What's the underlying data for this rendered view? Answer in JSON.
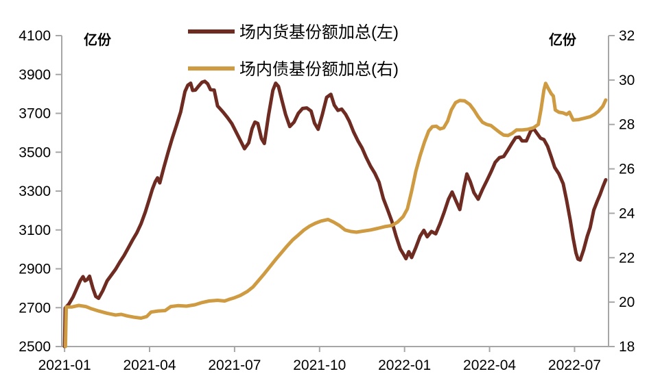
{
  "chart_data": {
    "type": "line",
    "title": "",
    "grid": false,
    "legend_position": "top-center",
    "left_axis": {
      "unit": "亿份",
      "min": 2500,
      "max": 4100,
      "ticks": [
        4100,
        3900,
        3700,
        3500,
        3300,
        3100,
        2900,
        2700,
        2500
      ]
    },
    "right_axis": {
      "unit": "亿份",
      "min": 18,
      "max": 32,
      "ticks": [
        32,
        30,
        28,
        26,
        24,
        22,
        20,
        18
      ]
    },
    "x_axis": {
      "tick_labels": [
        "2021-01",
        "2021-04",
        "2021-07",
        "2021-10",
        "2022-01",
        "2022-04",
        "2022-07"
      ],
      "tick_months": [
        0,
        3,
        6,
        9,
        12,
        15,
        18
      ]
    },
    "colors": {
      "axis": "#a6a6a6",
      "text": "#000000",
      "background": "#ffffff"
    },
    "series": [
      {
        "name": "场内货基份额加总(左)",
        "axis": "left",
        "color": "#6E2B22",
        "stroke_width": 5,
        "points": [
          [
            0.0,
            2500
          ],
          [
            0.02,
            2698
          ],
          [
            0.15,
            2718
          ],
          [
            0.3,
            2755
          ],
          [
            0.45,
            2805
          ],
          [
            0.55,
            2838
          ],
          [
            0.65,
            2860
          ],
          [
            0.72,
            2838
          ],
          [
            0.8,
            2845
          ],
          [
            0.88,
            2862
          ],
          [
            1.0,
            2800
          ],
          [
            1.1,
            2758
          ],
          [
            1.2,
            2748
          ],
          [
            1.35,
            2788
          ],
          [
            1.5,
            2838
          ],
          [
            1.65,
            2868
          ],
          [
            1.8,
            2898
          ],
          [
            1.95,
            2935
          ],
          [
            2.1,
            2968
          ],
          [
            2.25,
            3008
          ],
          [
            2.4,
            3048
          ],
          [
            2.55,
            3085
          ],
          [
            2.7,
            3132
          ],
          [
            2.85,
            3192
          ],
          [
            3.0,
            3262
          ],
          [
            3.1,
            3310
          ],
          [
            3.2,
            3348
          ],
          [
            3.28,
            3368
          ],
          [
            3.36,
            3342
          ],
          [
            3.5,
            3420
          ],
          [
            3.65,
            3498
          ],
          [
            3.8,
            3572
          ],
          [
            3.95,
            3638
          ],
          [
            4.1,
            3708
          ],
          [
            4.25,
            3812
          ],
          [
            4.35,
            3845
          ],
          [
            4.45,
            3855
          ],
          [
            4.52,
            3818
          ],
          [
            4.62,
            3820
          ],
          [
            4.72,
            3838
          ],
          [
            4.85,
            3860
          ],
          [
            4.95,
            3865
          ],
          [
            5.05,
            3852
          ],
          [
            5.15,
            3822
          ],
          [
            5.28,
            3820
          ],
          [
            5.4,
            3738
          ],
          [
            5.5,
            3722
          ],
          [
            5.62,
            3702
          ],
          [
            5.75,
            3678
          ],
          [
            5.9,
            3648
          ],
          [
            6.05,
            3605
          ],
          [
            6.2,
            3562
          ],
          [
            6.35,
            3518
          ],
          [
            6.5,
            3548
          ],
          [
            6.62,
            3622
          ],
          [
            6.72,
            3655
          ],
          [
            6.82,
            3648
          ],
          [
            6.95,
            3570
          ],
          [
            7.05,
            3545
          ],
          [
            7.2,
            3692
          ],
          [
            7.35,
            3818
          ],
          [
            7.45,
            3855
          ],
          [
            7.55,
            3838
          ],
          [
            7.68,
            3762
          ],
          [
            7.8,
            3695
          ],
          [
            7.95,
            3632
          ],
          [
            8.1,
            3655
          ],
          [
            8.25,
            3700
          ],
          [
            8.4,
            3725
          ],
          [
            8.55,
            3728
          ],
          [
            8.7,
            3712
          ],
          [
            8.82,
            3650
          ],
          [
            8.95,
            3618
          ],
          [
            9.1,
            3695
          ],
          [
            9.25,
            3782
          ],
          [
            9.4,
            3798
          ],
          [
            9.52,
            3742
          ],
          [
            9.65,
            3715
          ],
          [
            9.78,
            3722
          ],
          [
            9.92,
            3695
          ],
          [
            10.05,
            3660
          ],
          [
            10.2,
            3605
          ],
          [
            10.35,
            3560
          ],
          [
            10.5,
            3522
          ],
          [
            10.65,
            3472
          ],
          [
            10.8,
            3428
          ],
          [
            10.95,
            3392
          ],
          [
            11.1,
            3345
          ],
          [
            11.25,
            3262
          ],
          [
            11.4,
            3205
          ],
          [
            11.55,
            3145
          ],
          [
            11.7,
            3068
          ],
          [
            11.85,
            3002
          ],
          [
            11.95,
            2978
          ],
          [
            12.05,
            2952
          ],
          [
            12.15,
            2988
          ],
          [
            12.25,
            2958
          ],
          [
            12.4,
            3010
          ],
          [
            12.55,
            3068
          ],
          [
            12.68,
            3098
          ],
          [
            12.8,
            3065
          ],
          [
            12.95,
            3092
          ],
          [
            13.1,
            3080
          ],
          [
            13.25,
            3132
          ],
          [
            13.4,
            3192
          ],
          [
            13.55,
            3258
          ],
          [
            13.68,
            3295
          ],
          [
            13.82,
            3248
          ],
          [
            13.95,
            3205
          ],
          [
            14.1,
            3322
          ],
          [
            14.2,
            3388
          ],
          [
            14.32,
            3348
          ],
          [
            14.45,
            3292
          ],
          [
            14.6,
            3258
          ],
          [
            14.75,
            3308
          ],
          [
            14.9,
            3352
          ],
          [
            15.05,
            3398
          ],
          [
            15.2,
            3448
          ],
          [
            15.35,
            3472
          ],
          [
            15.5,
            3478
          ],
          [
            15.65,
            3512
          ],
          [
            15.8,
            3548
          ],
          [
            15.92,
            3575
          ],
          [
            16.05,
            3578
          ],
          [
            16.15,
            3558
          ],
          [
            16.3,
            3558
          ],
          [
            16.45,
            3608
          ],
          [
            16.55,
            3622
          ],
          [
            16.67,
            3598
          ],
          [
            16.8,
            3572
          ],
          [
            16.92,
            3565
          ],
          [
            17.05,
            3530
          ],
          [
            17.18,
            3475
          ],
          [
            17.3,
            3422
          ],
          [
            17.45,
            3388
          ],
          [
            17.6,
            3338
          ],
          [
            17.72,
            3252
          ],
          [
            17.85,
            3148
          ],
          [
            17.95,
            3058
          ],
          [
            18.05,
            2982
          ],
          [
            18.12,
            2950
          ],
          [
            18.2,
            2945
          ],
          [
            18.32,
            2998
          ],
          [
            18.45,
            3068
          ],
          [
            18.55,
            3112
          ],
          [
            18.68,
            3202
          ],
          [
            18.8,
            3248
          ],
          [
            18.9,
            3282
          ],
          [
            19.0,
            3322
          ],
          [
            19.1,
            3358
          ]
        ]
      },
      {
        "name": "场内债基份额加总(右)",
        "axis": "right",
        "color": "#CE9B42",
        "stroke_width": 5,
        "points": [
          [
            0.03,
            18.0
          ],
          [
            0.06,
            19.78
          ],
          [
            0.25,
            19.78
          ],
          [
            0.5,
            19.85
          ],
          [
            0.75,
            19.8
          ],
          [
            0.95,
            19.7
          ],
          [
            1.2,
            19.6
          ],
          [
            1.5,
            19.5
          ],
          [
            1.8,
            19.42
          ],
          [
            2.0,
            19.45
          ],
          [
            2.2,
            19.38
          ],
          [
            2.45,
            19.32
          ],
          [
            2.7,
            19.28
          ],
          [
            2.9,
            19.35
          ],
          [
            3.05,
            19.55
          ],
          [
            3.3,
            19.6
          ],
          [
            3.55,
            19.62
          ],
          [
            3.75,
            19.8
          ],
          [
            4.0,
            19.84
          ],
          [
            4.3,
            19.82
          ],
          [
            4.6,
            19.88
          ],
          [
            4.85,
            19.98
          ],
          [
            5.1,
            20.05
          ],
          [
            5.4,
            20.08
          ],
          [
            5.65,
            20.05
          ],
          [
            5.8,
            20.12
          ],
          [
            6.0,
            20.2
          ],
          [
            6.2,
            20.3
          ],
          [
            6.45,
            20.48
          ],
          [
            6.65,
            20.68
          ],
          [
            6.85,
            20.98
          ],
          [
            7.05,
            21.28
          ],
          [
            7.25,
            21.6
          ],
          [
            7.45,
            21.92
          ],
          [
            7.65,
            22.22
          ],
          [
            7.85,
            22.52
          ],
          [
            8.05,
            22.8
          ],
          [
            8.25,
            23.02
          ],
          [
            8.45,
            23.25
          ],
          [
            8.65,
            23.42
          ],
          [
            8.85,
            23.55
          ],
          [
            9.05,
            23.65
          ],
          [
            9.3,
            23.72
          ],
          [
            9.5,
            23.6
          ],
          [
            9.7,
            23.45
          ],
          [
            9.9,
            23.25
          ],
          [
            10.1,
            23.18
          ],
          [
            10.3,
            23.15
          ],
          [
            10.55,
            23.2
          ],
          [
            10.8,
            23.25
          ],
          [
            11.05,
            23.32
          ],
          [
            11.3,
            23.4
          ],
          [
            11.55,
            23.45
          ],
          [
            11.75,
            23.6
          ],
          [
            11.95,
            23.85
          ],
          [
            12.1,
            24.2
          ],
          [
            12.25,
            25.0
          ],
          [
            12.4,
            25.9
          ],
          [
            12.55,
            26.6
          ],
          [
            12.7,
            27.2
          ],
          [
            12.85,
            27.7
          ],
          [
            12.98,
            27.9
          ],
          [
            13.12,
            27.92
          ],
          [
            13.25,
            27.8
          ],
          [
            13.38,
            27.85
          ],
          [
            13.52,
            28.15
          ],
          [
            13.65,
            28.65
          ],
          [
            13.8,
            28.98
          ],
          [
            13.95,
            29.08
          ],
          [
            14.12,
            29.06
          ],
          [
            14.3,
            28.9
          ],
          [
            14.45,
            28.65
          ],
          [
            14.6,
            28.35
          ],
          [
            14.75,
            28.1
          ],
          [
            14.9,
            28.0
          ],
          [
            15.05,
            27.95
          ],
          [
            15.2,
            27.8
          ],
          [
            15.35,
            27.65
          ],
          [
            15.5,
            27.52
          ],
          [
            15.65,
            27.5
          ],
          [
            15.8,
            27.6
          ],
          [
            15.95,
            27.75
          ],
          [
            16.15,
            27.75
          ],
          [
            16.35,
            27.78
          ],
          [
            16.55,
            27.85
          ],
          [
            16.72,
            28.0
          ],
          [
            16.82,
            28.7
          ],
          [
            16.92,
            29.55
          ],
          [
            16.98,
            29.85
          ],
          [
            17.08,
            29.6
          ],
          [
            17.18,
            29.38
          ],
          [
            17.25,
            29.28
          ],
          [
            17.32,
            28.65
          ],
          [
            17.45,
            28.55
          ],
          [
            17.6,
            28.52
          ],
          [
            17.72,
            28.45
          ],
          [
            17.82,
            28.55
          ],
          [
            17.95,
            28.2
          ],
          [
            18.15,
            28.22
          ],
          [
            18.35,
            28.28
          ],
          [
            18.55,
            28.35
          ],
          [
            18.7,
            28.45
          ],
          [
            18.85,
            28.6
          ],
          [
            19.0,
            28.82
          ],
          [
            19.1,
            29.1
          ]
        ]
      }
    ]
  }
}
